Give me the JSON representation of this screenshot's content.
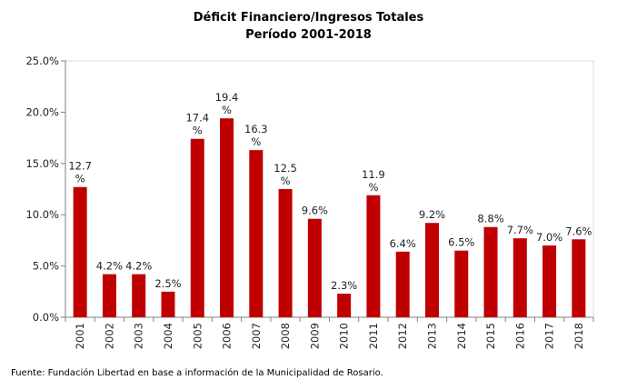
{
  "chart_data": {
    "type": "bar",
    "title_lines": [
      "Déficit Financiero/Ingresos Totales",
      "Período 2001-2018"
    ],
    "categories": [
      "2001",
      "2002",
      "2003",
      "2004",
      "2005",
      "2006",
      "2007",
      "2008",
      "2009",
      "2010",
      "2011",
      "2012",
      "2013",
      "2014",
      "2015",
      "2016",
      "2017",
      "2018"
    ],
    "values": [
      12.7,
      4.2,
      4.2,
      2.5,
      17.4,
      19.4,
      16.3,
      12.5,
      9.6,
      2.3,
      11.9,
      6.4,
      9.2,
      6.5,
      8.8,
      7.7,
      7.0,
      7.6
    ],
    "data_labels": [
      [
        "12.7",
        "%"
      ],
      [
        "4.2%"
      ],
      [
        "4.2%"
      ],
      [
        "2.5%"
      ],
      [
        "17.4",
        "%"
      ],
      [
        "19.4",
        "%"
      ],
      [
        "16.3",
        "%"
      ],
      [
        "12.5",
        "%"
      ],
      [
        "9.6%"
      ],
      [
        "2.3%"
      ],
      [
        "11.9",
        "%"
      ],
      [
        "6.4%"
      ],
      [
        "9.2%"
      ],
      [
        "6.5%"
      ],
      [
        "8.8%"
      ],
      [
        "7.7%"
      ],
      [
        "7.0%"
      ],
      [
        "7.6%"
      ]
    ],
    "y_ticks": [
      0,
      5,
      10,
      15,
      20,
      25
    ],
    "y_tick_labels": [
      "0.0%",
      "5.0%",
      "10.0%",
      "15.0%",
      "20.0%",
      "25.0%"
    ],
    "ylim": [
      0,
      25
    ],
    "xlabel": "",
    "ylabel": "",
    "grid": false,
    "legend": "none",
    "bar_color": "#c00000"
  },
  "source_note": "Fuente: Fundación Libertad en base a información de la Municipalidad de Rosario."
}
